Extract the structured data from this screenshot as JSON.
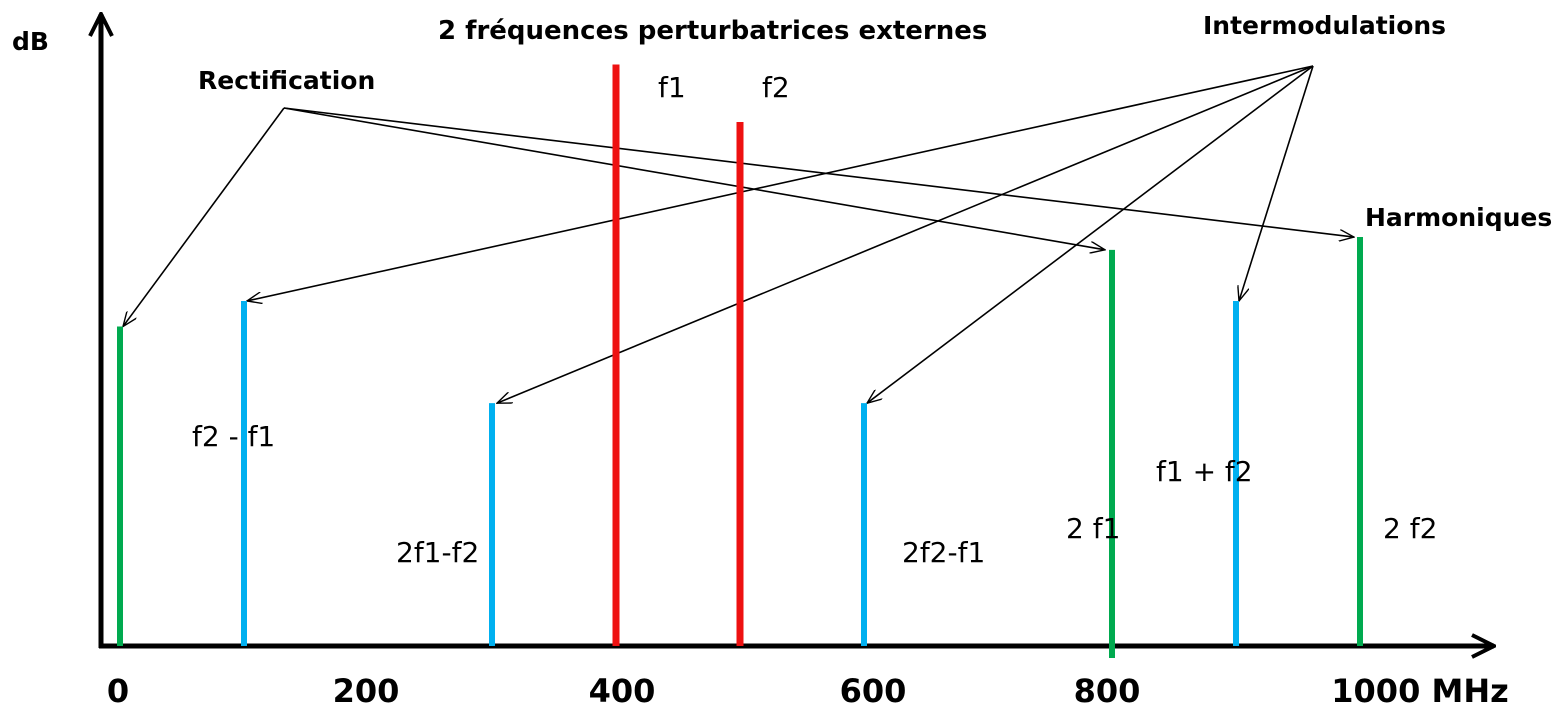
{
  "title": "2 fréquences perturbatrices externes",
  "y_axis_label": "dB",
  "groups": {
    "rectification": "Rectification",
    "intermodulations": "Intermodulations",
    "harmoniques": "Harmoniques"
  },
  "x_ticks": [
    "0",
    "200",
    "400",
    "600",
    "800",
    "1000 MHz"
  ],
  "colors": {
    "external": "#ee1111",
    "rectification": "#00aa4f",
    "harmonic": "#00aa4f",
    "intermod": "#00b0f0",
    "axis": "#000000"
  },
  "chart_data": {
    "type": "bar",
    "title": "2 fréquences perturbatrices externes",
    "ylabel": "dB",
    "xlabel": "",
    "xlim": [
      0,
      1000
    ],
    "x_unit": "MHz",
    "grid": false,
    "series": [
      {
        "name": "2 fréquences perturbatrices externes",
        "points": [
          {
            "label": "f1",
            "x": 400,
            "level": 0.91
          },
          {
            "label": "f2",
            "x": 500,
            "level": 0.82
          }
        ]
      },
      {
        "name": "Rectification",
        "points": [
          {
            "label": "",
            "x": 0,
            "level": 0.5
          }
        ]
      },
      {
        "name": "Intermodulations",
        "points": [
          {
            "label": "f2 - f1",
            "x": 100,
            "level": 0.54
          },
          {
            "label": "2f1-f2",
            "x": 300,
            "level": 0.38
          },
          {
            "label": "2f2-f1",
            "x": 600,
            "level": 0.38
          },
          {
            "label": "f1 + f2",
            "x": 900,
            "level": 0.54
          }
        ]
      },
      {
        "name": "Harmoniques",
        "points": [
          {
            "label": "2 f1",
            "x": 800,
            "level": 0.62
          },
          {
            "label": "2 f2",
            "x": 1000,
            "level": 0.64
          }
        ]
      }
    ]
  }
}
